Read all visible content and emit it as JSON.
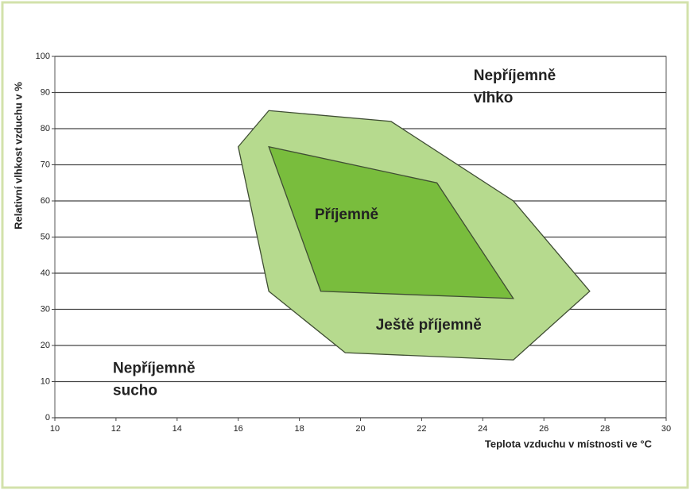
{
  "chart_data": {
    "type": "polygon",
    "x_label": "Teplota vzduchu v místnosti ve °C",
    "y_label": "Relativní vlhkost vzduchu v %",
    "xlim": [
      10,
      30
    ],
    "xticks": [
      10,
      12,
      14,
      16,
      18,
      20,
      22,
      24,
      26,
      28,
      30
    ],
    "ylim": [
      0,
      100
    ],
    "yticks": [
      0,
      10,
      20,
      30,
      40,
      50,
      60,
      70,
      80,
      90,
      100
    ],
    "grid": true,
    "series": [
      {
        "name": "Ještě příjemně",
        "color": "#b6da8e",
        "x": [
          17,
          21,
          25,
          27.5,
          25,
          19.5,
          17,
          16
        ],
        "y": [
          85,
          82,
          60,
          35,
          16,
          18,
          35,
          75
        ]
      },
      {
        "name": "Příjemně",
        "color": "#79bd3d",
        "x": [
          17,
          22.5,
          25,
          18.7
        ],
        "y": [
          75,
          65,
          33,
          35
        ]
      }
    ],
    "annotations": [
      {
        "lines": [
          "Nepříjemně",
          "vlhko"
        ]
      },
      {
        "lines": [
          "Nepříjemně",
          "sucho"
        ]
      }
    ]
  }
}
